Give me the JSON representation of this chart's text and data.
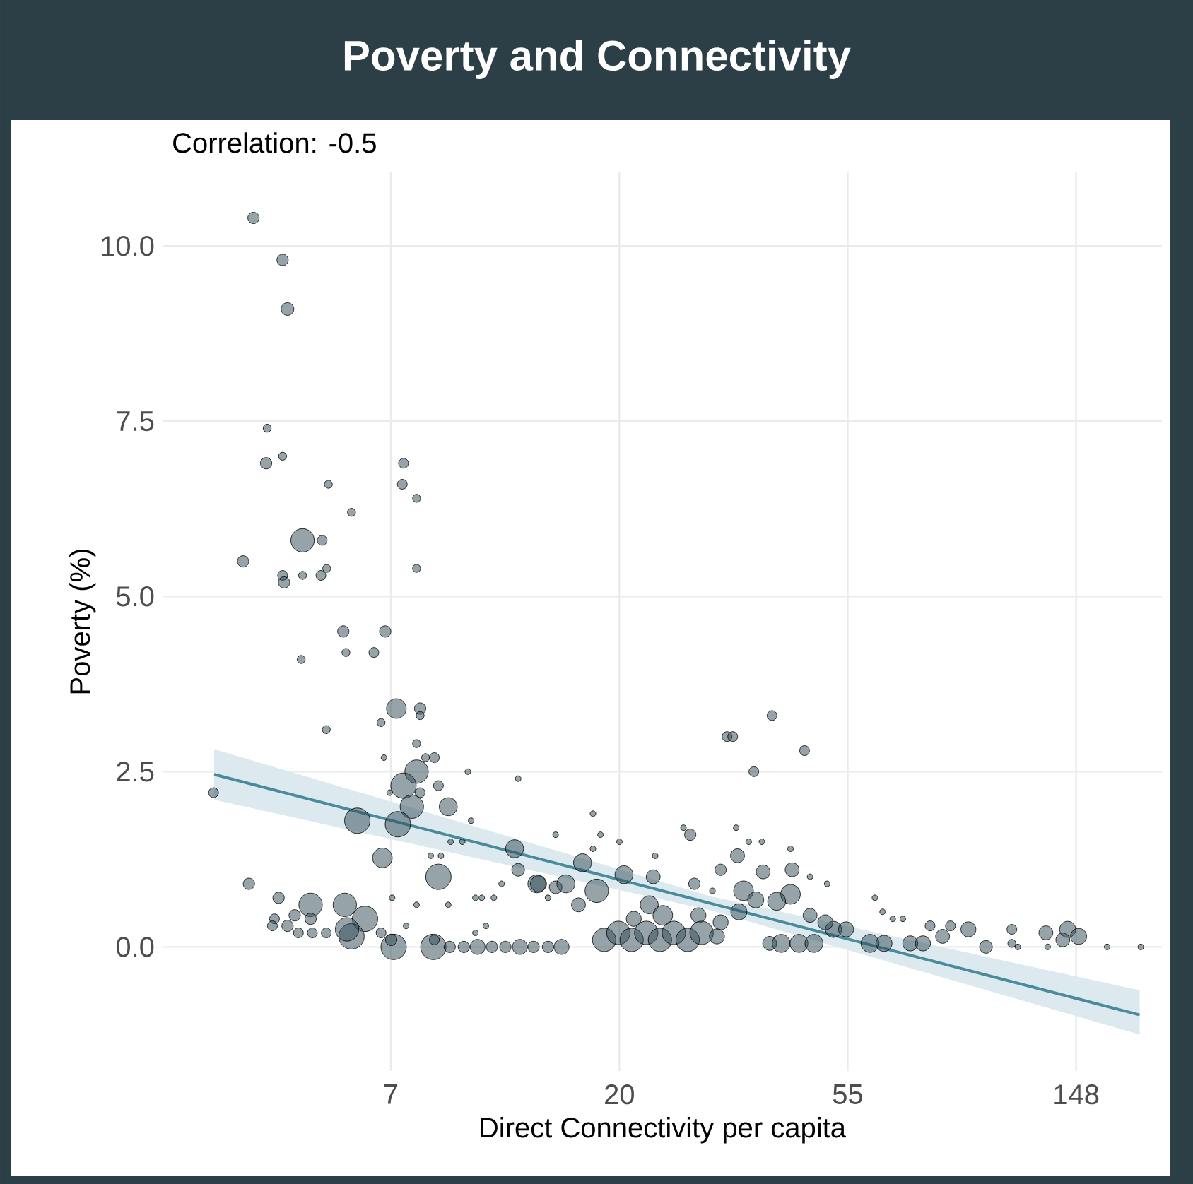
{
  "chart_data": {
    "type": "bubble",
    "title": "Poverty and Connectivity",
    "xlabel": "Direct Connectivity per capita",
    "ylabel": "Poverty (%)",
    "annotations": [
      "Correlation: -0.5"
    ],
    "log": "x",
    "grid": true,
    "xlim": [
      2.72,
      216
    ],
    "ylim": [
      -1.77,
      11.05
    ],
    "xticks": [
      {
        "value": 7.389,
        "label": "7"
      },
      {
        "value": 20.09,
        "label": "20"
      },
      {
        "value": 54.6,
        "label": "55"
      },
      {
        "value": 148.4,
        "label": "148"
      }
    ],
    "yticks": [
      {
        "value": 0,
        "label": "0.0"
      },
      2.5,
      {
        "value": 5,
        "label": "5.0"
      },
      7.5,
      {
        "value": 10,
        "label": "10.0"
      }
    ],
    "series": [
      {
        "color": "#2e4a55",
        "x": [
          4.05,
          4.6,
          4.7,
          4.3,
          4.6,
          4.28,
          5.62,
          7.81,
          7.77,
          8.27,
          6.22,
          5.02,
          5.47,
          3.87,
          8.27,
          4.6,
          4.63,
          5.02,
          5.44,
          5.58,
          6.0,
          7.21,
          6.07,
          6.86,
          4.99,
          7.57,
          8.4,
          8.4,
          7.08,
          5.57,
          8.27,
          7.17,
          8.6,
          8.94,
          8.27,
          10.35,
          12.9,
          7.81,
          9.1,
          8.4,
          7.35,
          3.4,
          8.1,
          9.5,
          6.38,
          7.62,
          10.5,
          9.6,
          10.1,
          12.7,
          15.2,
          7.12,
          8.8,
          9.2,
          12.9,
          14.0,
          9.1,
          12.0,
          3.97,
          7.43,
          4.52,
          10.7,
          11.0,
          11.6,
          9.5,
          8.27,
          5.2,
          6.04,
          6.6,
          4.85,
          5.2,
          4.44,
          4.4,
          4.7,
          4.93,
          5.24,
          5.57,
          6.22,
          6.1,
          7.08,
          7.9,
          11.2,
          10.7,
          7.48,
          7.4,
          8.9,
          8.94,
          9.56,
          10.17,
          10.8,
          11.5,
          12.2,
          13.0,
          13.8,
          14.7,
          15.6,
          15.2,
          32.2,
          33.0,
          39.2,
          45.2,
          36.2,
          17.9,
          18.5,
          20.1,
          17.9,
          26.6,
          27.4,
          33.5,
          35.4,
          37.5,
          42.5,
          17.1,
          20.5,
          23.3,
          23.5,
          15.9,
          14.1,
          18.2,
          16.8,
          14.7,
          27.9,
          30.2,
          33.7,
          31.3,
          37.7,
          42.8,
          46.3,
          49.9,
          34.6,
          42.5,
          40.0,
          22.9,
          24.3,
          28.4,
          31.3,
          33.9,
          36.5,
          46.3,
          21.4,
          18.8,
          20.0,
          21.2,
          22.6,
          24.0,
          25.5,
          27.1,
          28.8,
          30.8,
          38.8,
          40.8,
          44.1,
          47.1,
          51.3,
          54.2,
          49.5,
          60.2,
          64.0,
          61.5,
          63.6,
          66.5,
          69.5,
          71.8,
          75.9,
          78.3,
          82.7,
          85.6,
          92.6,
          100,
          112,
          112,
          130,
          131,
          143,
          150,
          140,
          170,
          197,
          115
        ],
        "values": [
          10.4,
          9.8,
          9.1,
          7.4,
          7.0,
          6.9,
          6.6,
          6.9,
          6.6,
          6.4,
          6.2,
          5.8,
          5.8,
          5.5,
          5.4,
          5.3,
          5.2,
          5.3,
          5.3,
          5.4,
          4.5,
          4.5,
          4.2,
          4.2,
          4.1,
          3.4,
          3.4,
          3.3,
          3.2,
          3.1,
          2.9,
          2.7,
          2.7,
          2.7,
          2.5,
          2.5,
          2.4,
          2.3,
          2.3,
          2.2,
          2.2,
          2.2,
          2.0,
          2.0,
          1.8,
          1.75,
          1.8,
          1.5,
          1.5,
          1.4,
          1.6,
          1.27,
          1.3,
          1.3,
          1.1,
          0.9,
          1.0,
          0.9,
          0.9,
          0.7,
          0.7,
          0.7,
          0.7,
          0.7,
          0.6,
          0.6,
          0.6,
          0.6,
          0.4,
          0.45,
          0.4,
          0.4,
          0.3,
          0.3,
          0.2,
          0.2,
          0.2,
          0.15,
          0.25,
          0.2,
          0.3,
          0.3,
          0.2,
          0.0,
          0.1,
          0.0,
          0.1,
          0,
          0,
          0,
          0,
          0,
          0,
          0,
          0,
          0,
          0.85,
          3.0,
          3.0,
          3.3,
          2.8,
          2.5,
          1.9,
          1.6,
          1.5,
          1.4,
          1.7,
          1.6,
          1.7,
          1.5,
          1.5,
          1.4,
          1.2,
          1.03,
          1.0,
          1.3,
          0.9,
          0.9,
          0.8,
          0.6,
          0.7,
          0.9,
          0.8,
          1.3,
          1.1,
          1.07,
          1.1,
          1.0,
          0.9,
          0.8,
          0.75,
          0.65,
          0.6,
          0.45,
          0.45,
          0.35,
          0.5,
          0.67,
          0.45,
          0.4,
          0.1,
          0.2,
          0.1,
          0.2,
          0.1,
          0.2,
          0.1,
          0.2,
          0.15,
          0.05,
          0.05,
          0.05,
          0.05,
          0.25,
          0.25,
          0.35,
          0.05,
          0.05,
          0.7,
          0.5,
          0.4,
          0.4,
          0.05,
          0.05,
          0.3,
          0.15,
          0.3,
          0.25,
          0.0,
          0.25,
          0.05,
          0.2,
          0.0,
          0.25,
          0.15,
          0.1,
          0.0,
          0.0,
          0.0
        ],
        "sizes": [
          0.2,
          0.2,
          0.25,
          0.1,
          0.1,
          0.2,
          0.1,
          0.15,
          0.15,
          0.1,
          0.1,
          0.85,
          0.15,
          0.2,
          0.1,
          0.15,
          0.2,
          0.1,
          0.15,
          0.1,
          0.2,
          0.2,
          0.1,
          0.15,
          0.1,
          0.6,
          0.2,
          0.1,
          0.1,
          0.1,
          0.1,
          0.05,
          0.1,
          0.15,
          0.85,
          0.05,
          0.05,
          1.0,
          0.15,
          0.15,
          0.05,
          0.15,
          0.85,
          0.5,
          1.0,
          1.0,
          0.05,
          0.05,
          0.05,
          0.5,
          0.05,
          0.6,
          0.05,
          0.05,
          0.25,
          0.5,
          1.0,
          0.05,
          0.2,
          0.05,
          0.2,
          0.05,
          0.05,
          0.05,
          0.05,
          0.05,
          0.85,
          0.85,
          1.0,
          0.2,
          0.2,
          0.15,
          0.15,
          0.2,
          0.15,
          0.15,
          0.15,
          1.0,
          0.85,
          0.15,
          0.05,
          0.05,
          0.05,
          1.0,
          0.2,
          1.0,
          0.15,
          0.2,
          0.2,
          0.35,
          0.2,
          0.2,
          0.35,
          0.2,
          0.2,
          0.35,
          0.25,
          0.15,
          0.15,
          0.15,
          0.15,
          0.15,
          0.05,
          0.05,
          0.05,
          0.05,
          0.05,
          0.2,
          0.05,
          0.05,
          0.05,
          0.05,
          0.5,
          0.5,
          0.3,
          0.05,
          0.5,
          0.4,
          0.85,
          0.3,
          0.05,
          0.2,
          0.05,
          0.3,
          0.2,
          0.3,
          0.3,
          0.05,
          0.05,
          0.6,
          0.6,
          0.5,
          0.5,
          0.6,
          0.35,
          0.35,
          0.4,
          0.4,
          0.3,
          0.35,
          0.85,
          0.85,
          0.85,
          0.85,
          0.85,
          0.85,
          0.85,
          0.85,
          0.35,
          0.3,
          0.5,
          0.5,
          0.5,
          0.4,
          0.35,
          0.35,
          0.5,
          0.4,
          0.05,
          0.05,
          0.05,
          0.05,
          0.35,
          0.35,
          0.15,
          0.3,
          0.15,
          0.35,
          0.25,
          0.15,
          0.1,
          0.3,
          0.05,
          0.4,
          0.4,
          0.3,
          0.05,
          0.05,
          0.05
        ]
      },
      {
        "type": "line",
        "color": "#4a8b9b",
        "line_style": "solid",
        "x": [
          3.41,
          30,
          196
        ],
        "values": [
          2.46,
          0.62,
          -0.97
        ],
        "lower": [
          2.1,
          0.52,
          -1.25
        ],
        "upper": [
          2.82,
          0.72,
          -0.62
        ]
      }
    ]
  }
}
